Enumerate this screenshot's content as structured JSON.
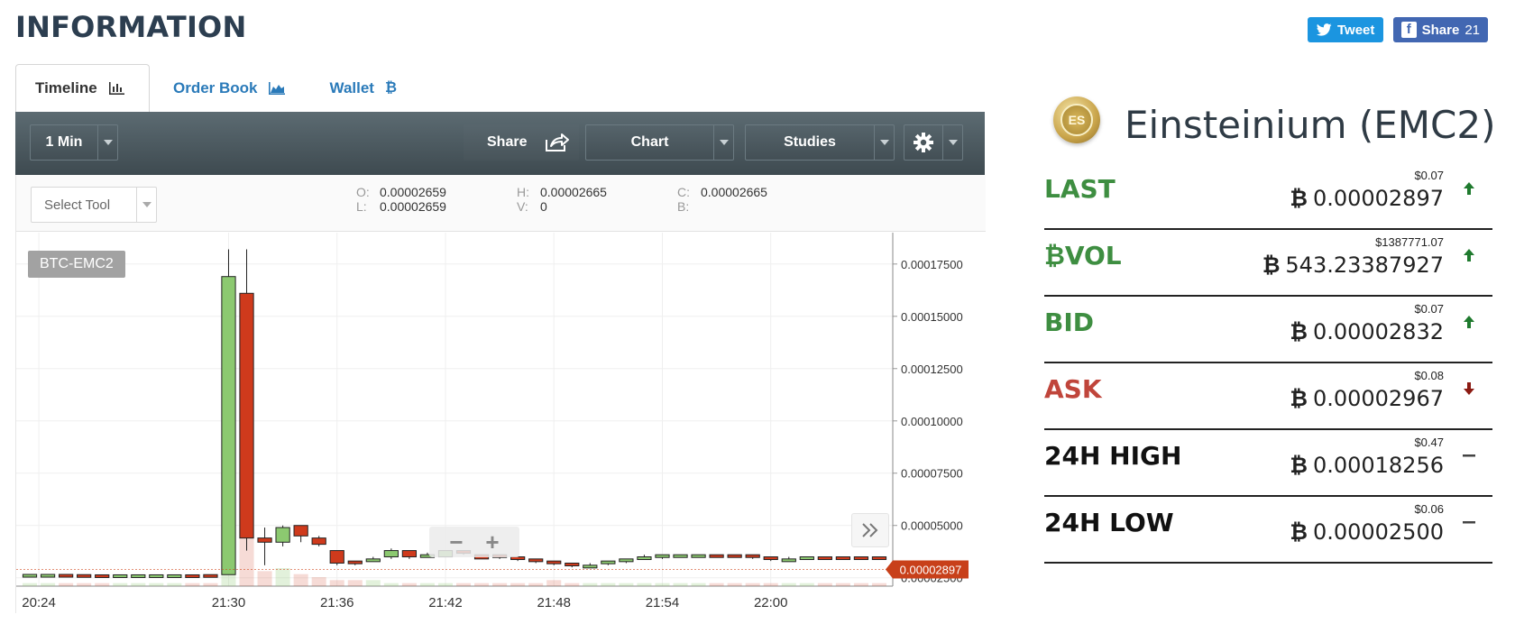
{
  "page": {
    "title": "INFORMATION"
  },
  "social": {
    "tweet_label": "Tweet",
    "share_label": "Share",
    "share_count": "21"
  },
  "tabs": [
    {
      "label": "Timeline",
      "icon": "bar-chart-icon",
      "active": true
    },
    {
      "label": "Order Book",
      "icon": "area-chart-icon",
      "active": false
    },
    {
      "label": "Wallet",
      "icon": "bitcoin-icon",
      "active": false
    }
  ],
  "toolbar": {
    "interval": "1 Min",
    "share": "Share",
    "chart": "Chart",
    "studies": "Studies",
    "settings_icon": "gear-icon"
  },
  "chart_header": {
    "select_tool": "Select Tool",
    "o_key": "O:",
    "o": "0.00002659",
    "l_key": "L:",
    "l": "0.00002659",
    "h_key": "H:",
    "h": "0.00002665",
    "v_key": "V:",
    "v": "0",
    "c_key": "C:",
    "c": "0.00002665",
    "b_key": "B:"
  },
  "chart_data": {
    "type": "candlestick",
    "symbol": "BTC-EMC2",
    "current_price": "0.00002897",
    "x_ticks": [
      "20:24",
      "21:30",
      "21:36",
      "21:42",
      "21:48",
      "21:54",
      "22:00"
    ],
    "y_ticks": [
      "0.00017500",
      "0.00015000",
      "0.00012500",
      "0.00010000",
      "0.00007500",
      "0.00005000",
      "0.00002500"
    ],
    "ylim": [
      2.1e-05,
      0.00019
    ],
    "colors": {
      "up": "#8cc970",
      "down": "#cf3a1c"
    },
    "candles": [
      {
        "x": 0.5,
        "o": 2.62e-05,
        "c": 2.66e-05,
        "h": 2.67e-05,
        "l": 2.61e-05
      },
      {
        "x": 1.5,
        "o": 2.64e-05,
        "c": 2.66e-05,
        "h": 2.67e-05,
        "l": 2.63e-05
      },
      {
        "x": 2.5,
        "o": 2.66e-05,
        "c": 2.64e-05,
        "h": 2.67e-05,
        "l": 2.63e-05
      },
      {
        "x": 3.5,
        "o": 2.65e-05,
        "c": 2.64e-05,
        "h": 2.65e-05,
        "l": 2.64e-05
      },
      {
        "x": 4.5,
        "o": 2.64e-05,
        "c": 2.62e-05,
        "h": 2.64e-05,
        "l": 2.61e-05
      },
      {
        "x": 5.5,
        "o": 2.63e-05,
        "c": 2.64e-05,
        "h": 2.64e-05,
        "l": 2.63e-05
      },
      {
        "x": 6.5,
        "o": 2.63e-05,
        "c": 2.64e-05,
        "h": 2.64e-05,
        "l": 2.62e-05
      },
      {
        "x": 7.5,
        "o": 2.63e-05,
        "c": 2.64e-05,
        "h": 2.64e-05,
        "l": 2.63e-05
      },
      {
        "x": 8.5,
        "o": 2.63e-05,
        "c": 2.64e-05,
        "h": 2.65e-05,
        "l": 2.62e-05
      },
      {
        "x": 9.5,
        "o": 2.64e-05,
        "c": 2.62e-05,
        "h": 2.65e-05,
        "l": 2.62e-05
      },
      {
        "x": 10.5,
        "o": 2.65e-05,
        "c": 2.64e-05,
        "h": 2.65e-05,
        "l": 2.64e-05
      },
      {
        "x": 11.5,
        "o": 2.65e-05,
        "c": 0.000169,
        "h": 0.000182,
        "l": 2.65e-05
      },
      {
        "x": 12.5,
        "o": 0.000161,
        "c": 4.4e-05,
        "h": 0.000182,
        "l": 3.8e-05
      },
      {
        "x": 13.5,
        "o": 4.4e-05,
        "c": 4.2e-05,
        "h": 4.9e-05,
        "l": 3.1e-05
      },
      {
        "x": 14.5,
        "o": 4.2e-05,
        "c": 4.9e-05,
        "h": 5e-05,
        "l": 4e-05
      },
      {
        "x": 15.5,
        "o": 5e-05,
        "c": 4.5e-05,
        "h": 5e-05,
        "l": 4.2e-05
      },
      {
        "x": 16.5,
        "o": 4.4e-05,
        "c": 4.1e-05,
        "h": 4.5e-05,
        "l": 4e-05
      },
      {
        "x": 17.5,
        "o": 3.8e-05,
        "c": 3.2e-05,
        "h": 3.8e-05,
        "l": 3.1e-05
      },
      {
        "x": 18.5,
        "o": 3.3e-05,
        "c": 3.2e-05,
        "h": 3.3e-05,
        "l": 3.1e-05
      },
      {
        "x": 19.5,
        "o": 3.3e-05,
        "c": 3.4e-05,
        "h": 3.5e-05,
        "l": 3.3e-05
      },
      {
        "x": 20.5,
        "o": 3.5e-05,
        "c": 3.8e-05,
        "h": 3.9e-05,
        "l": 3.4e-05
      },
      {
        "x": 21.5,
        "o": 3.8e-05,
        "c": 3.5e-05,
        "h": 3.8e-05,
        "l": 3.4e-05
      },
      {
        "x": 22.5,
        "o": 3.5e-05,
        "c": 3.6e-05,
        "h": 3.7e-05,
        "l": 3.5e-05
      },
      {
        "x": 23.5,
        "o": 3.5e-05,
        "c": 3.8e-05,
        "h": 3.8e-05,
        "l": 3.5e-05
      },
      {
        "x": 24.5,
        "o": 3.8e-05,
        "c": 3.7e-05,
        "h": 3.8e-05,
        "l": 3.6e-05
      },
      {
        "x": 25.5,
        "o": 3.6e-05,
        "c": 3.4e-05,
        "h": 3.6e-05,
        "l": 3.4e-05
      },
      {
        "x": 26.5,
        "o": 3.6e-05,
        "c": 3.5e-05,
        "h": 3.6e-05,
        "l": 3.4e-05
      },
      {
        "x": 27.5,
        "o": 3.5e-05,
        "c": 3.4e-05,
        "h": 3.5e-05,
        "l": 3.3e-05
      },
      {
        "x": 28.5,
        "o": 3.4e-05,
        "c": 3.3e-05,
        "h": 3.4e-05,
        "l": 3.2e-05
      },
      {
        "x": 29.5,
        "o": 3.3e-05,
        "c": 3.2e-05,
        "h": 3.3e-05,
        "l": 3.1e-05
      },
      {
        "x": 30.5,
        "o": 3.2e-05,
        "c": 3.1e-05,
        "h": 3.2e-05,
        "l": 3e-05
      },
      {
        "x": 31.5,
        "o": 3e-05,
        "c": 3.1e-05,
        "h": 3.2e-05,
        "l": 3e-05
      },
      {
        "x": 32.5,
        "o": 3.2e-05,
        "c": 3.3e-05,
        "h": 3.3e-05,
        "l": 3.1e-05
      },
      {
        "x": 33.5,
        "o": 3.3e-05,
        "c": 3.4e-05,
        "h": 3.4e-05,
        "l": 3.2e-05
      },
      {
        "x": 34.5,
        "o": 3.4e-05,
        "c": 3.5e-05,
        "h": 3.6e-05,
        "l": 3.4e-05
      },
      {
        "x": 35.5,
        "o": 3.5e-05,
        "c": 3.6e-05,
        "h": 3.6e-05,
        "l": 3.4e-05
      },
      {
        "x": 36.5,
        "o": 3.5e-05,
        "c": 3.6e-05,
        "h": 3.6e-05,
        "l": 3.5e-05
      },
      {
        "x": 37.5,
        "o": 3.5e-05,
        "c": 3.6e-05,
        "h": 3.6e-05,
        "l": 3.5e-05
      },
      {
        "x": 38.5,
        "o": 3.6e-05,
        "c": 3.5e-05,
        "h": 3.6e-05,
        "l": 3.5e-05
      },
      {
        "x": 39.5,
        "o": 3.6e-05,
        "c": 3.5e-05,
        "h": 3.6e-05,
        "l": 3.5e-05
      },
      {
        "x": 40.5,
        "o": 3.6e-05,
        "c": 3.5e-05,
        "h": 3.6e-05,
        "l": 3.4e-05
      },
      {
        "x": 41.5,
        "o": 3.5e-05,
        "c": 3.4e-05,
        "h": 3.5e-05,
        "l": 3.3e-05
      },
      {
        "x": 42.5,
        "o": 3.3e-05,
        "c": 3.4e-05,
        "h": 3.5e-05,
        "l": 3.3e-05
      },
      {
        "x": 43.5,
        "o": 3.4e-05,
        "c": 3.5e-05,
        "h": 3.5e-05,
        "l": 3.4e-05
      },
      {
        "x": 44.5,
        "o": 3.5e-05,
        "c": 3.4e-05,
        "h": 3.5e-05,
        "l": 3.4e-05
      },
      {
        "x": 45.5,
        "o": 3.5e-05,
        "c": 3.4e-05,
        "h": 3.5e-05,
        "l": 3.4e-05
      },
      {
        "x": 46.5,
        "o": 3.5e-05,
        "c": 3.4e-05,
        "h": 3.5e-05,
        "l": 3.4e-05
      },
      {
        "x": 47.5,
        "o": 3.5e-05,
        "c": 3.4e-05,
        "h": 3.5e-05,
        "l": 3.4e-05
      }
    ],
    "volume": [
      1,
      1,
      1,
      1,
      1,
      1,
      1,
      1,
      1,
      1,
      1,
      30,
      25,
      5,
      6,
      4,
      3,
      2,
      2,
      2,
      1,
      1,
      1,
      1,
      1,
      1,
      1,
      1,
      1,
      2,
      1,
      1,
      1,
      1,
      1,
      1,
      1,
      1,
      1,
      1,
      1,
      1,
      1,
      1,
      1,
      1,
      1,
      1
    ]
  },
  "coin": {
    "logo_text": "ES",
    "name": "Einsteinium (EMC2)",
    "btc_symbol": "₿"
  },
  "stats": [
    {
      "name": "LAST",
      "usd": "$0.07",
      "value": "0.00002897",
      "trend": "up",
      "color": "green"
    },
    {
      "name": "₿VOL",
      "usd": "$1387771.07",
      "value": "543.23387927",
      "trend": "up",
      "color": "green"
    },
    {
      "name": "BID",
      "usd": "$0.07",
      "value": "0.00002832",
      "trend": "up",
      "color": "green"
    },
    {
      "name": "ASK",
      "usd": "$0.08",
      "value": "0.00002967",
      "trend": "down",
      "color": "red"
    },
    {
      "name": "24H HIGH",
      "usd": "$0.47",
      "value": "0.00018256",
      "trend": "flat",
      "color": "black"
    },
    {
      "name": "24H LOW",
      "usd": "$0.06",
      "value": "0.00002500",
      "trend": "flat",
      "color": "black"
    }
  ]
}
